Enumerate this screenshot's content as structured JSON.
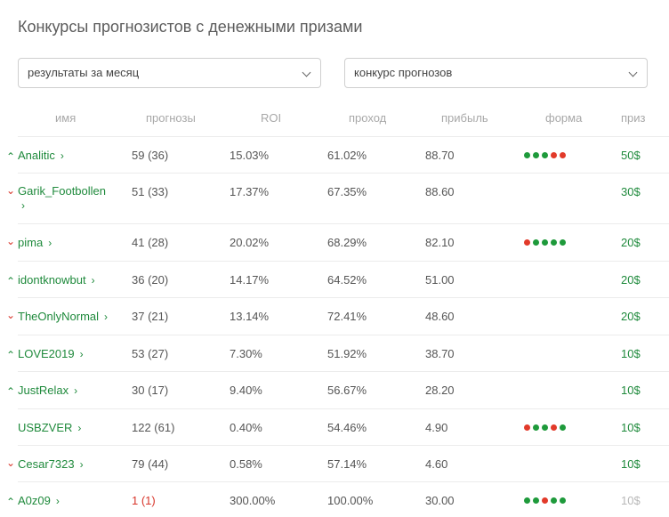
{
  "page": {
    "title": "Конкурсы прогнозистов с денежными призами"
  },
  "filters": {
    "period": "результаты за месяц",
    "contest": "конкурс прогнозов"
  },
  "table": {
    "headers": [
      "имя",
      "прогнозы",
      "ROI",
      "проход",
      "прибыль",
      "форма",
      "приз"
    ],
    "rows": [
      {
        "trend": "up",
        "name": "Analitic",
        "forecasts": "59 (36)",
        "roi": "15.03%",
        "pass": "61.02%",
        "profit": "88.70",
        "form": [
          "g",
          "g",
          "g",
          "r",
          "r"
        ],
        "prize": "50$"
      },
      {
        "trend": "down",
        "name": "Garik_Footbollen",
        "forecasts": "51 (33)",
        "roi": "17.37%",
        "pass": "67.35%",
        "profit": "88.60",
        "form": [],
        "prize": "30$"
      },
      {
        "trend": "down",
        "name": "pima",
        "forecasts": "41 (28)",
        "roi": "20.02%",
        "pass": "68.29%",
        "profit": "82.10",
        "form": [
          "r",
          "g",
          "g",
          "g",
          "g"
        ],
        "prize": "20$"
      },
      {
        "trend": "up",
        "name": "idontknowbut",
        "forecasts": "36 (20)",
        "roi": "14.17%",
        "pass": "64.52%",
        "profit": "51.00",
        "form": [],
        "prize": "20$"
      },
      {
        "trend": "down",
        "name": "TheOnlyNormal",
        "forecasts": "37 (21)",
        "roi": "13.14%",
        "pass": "72.41%",
        "profit": "48.60",
        "form": [],
        "prize": "20$"
      },
      {
        "trend": "up",
        "name": "LOVE2019",
        "forecasts": "53 (27)",
        "roi": "7.30%",
        "pass": "51.92%",
        "profit": "38.70",
        "form": [],
        "prize": "10$"
      },
      {
        "trend": "up",
        "name": "JustRelax",
        "forecasts": "30 (17)",
        "roi": "9.40%",
        "pass": "56.67%",
        "profit": "28.20",
        "form": [],
        "prize": "10$"
      },
      {
        "trend": "none",
        "name": "USBZVER",
        "forecasts": "122 (61)",
        "roi": "0.40%",
        "pass": "54.46%",
        "profit": "4.90",
        "form": [
          "r",
          "g",
          "g",
          "r",
          "g"
        ],
        "prize": "10$"
      },
      {
        "trend": "down",
        "name": "Cesar7323",
        "forecasts": "79 (44)",
        "roi": "0.58%",
        "pass": "57.14%",
        "profit": "4.60",
        "form": [],
        "prize": "10$"
      },
      {
        "trend": "up",
        "name": "A0z09",
        "forecasts": "1 (1)",
        "roi": "300.00%",
        "pass": "100.00%",
        "profit": "30.00",
        "form": [
          "g",
          "g",
          "r",
          "g",
          "g"
        ],
        "prize": "10$"
      }
    ]
  },
  "colors": {
    "green": "#1f8a3c",
    "red": "#d8352a",
    "dot_green": "#1e9a3b",
    "dot_red": "#e23a2a"
  }
}
